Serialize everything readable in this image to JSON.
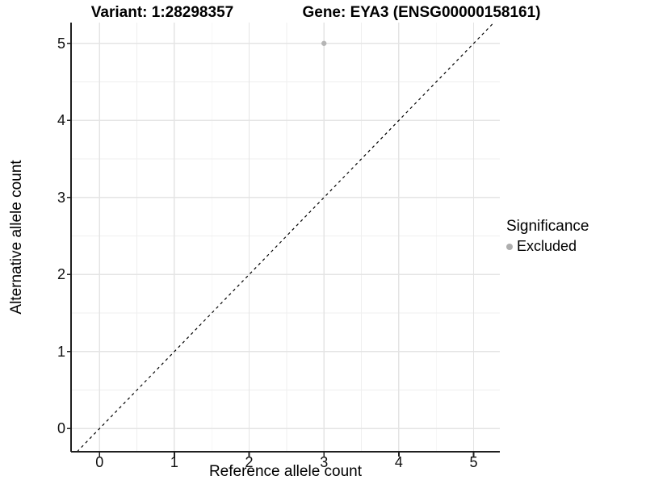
{
  "figure": {
    "background": "#ffffff"
  },
  "chart_data": {
    "type": "scatter",
    "title_left": "Variant: 1:28298357",
    "title_right": "Gene: EYA3 (ENSG00000158161)",
    "xlabel": "Reference allele count",
    "ylabel": "Alternative allele count",
    "x_ticks": [
      0,
      1,
      2,
      3,
      4,
      5
    ],
    "y_ticks": [
      0,
      1,
      2,
      3,
      4,
      5
    ],
    "xlim": [
      -0.38,
      5.35
    ],
    "ylim": [
      -0.3,
      5.27
    ],
    "grid": {
      "major": true,
      "minor": true
    },
    "points": [
      {
        "x": 3,
        "y": 5,
        "series": "Excluded"
      }
    ],
    "abline": {
      "slope": 1,
      "intercept": 0,
      "linetype": "dashed"
    },
    "legend": {
      "title": "Significance",
      "position": "right",
      "entries": [
        {
          "label": "Excluded",
          "color": "#aeaeae"
        }
      ]
    },
    "colors": {
      "point": "#b5b5b5",
      "grid_major": "#e4e4e4",
      "grid_minor": "#efefef",
      "axis_line": "#1f1f1f",
      "abline": "#000000",
      "text": "#000000"
    }
  }
}
